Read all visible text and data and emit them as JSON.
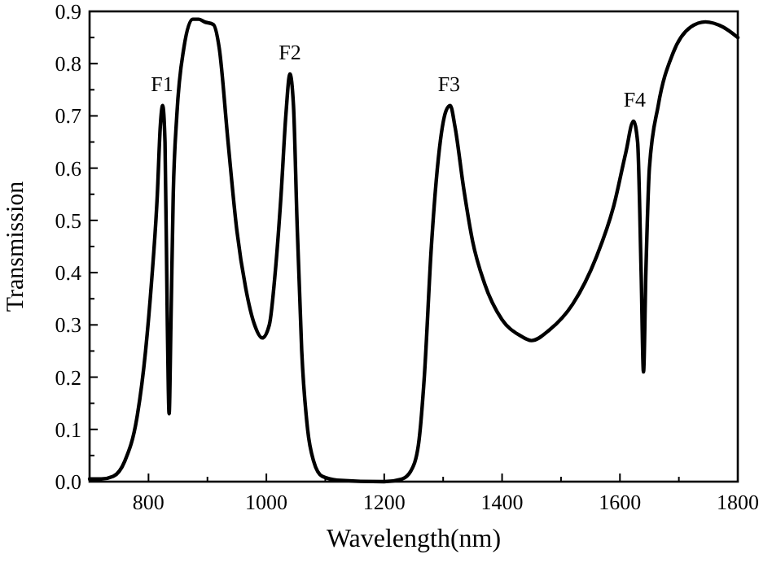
{
  "chart_data": {
    "type": "line",
    "xlabel": "Wavelength(nm)",
    "ylabel": "Transmission",
    "xlim": [
      700,
      1800
    ],
    "ylim": [
      0,
      0.9
    ],
    "xticks": [
      800,
      {
        "value": 900,
        "label": null
      },
      1000,
      {
        "value": 1100,
        "label": null
      },
      1200,
      {
        "value": 1300,
        "label": null
      },
      1400,
      {
        "value": 1500,
        "label": null
      },
      1600,
      {
        "value": 1700,
        "label": null
      },
      1800
    ],
    "yticks": [
      {
        "value": 0,
        "label": "0.0"
      },
      {
        "value": 0.05,
        "label": null
      },
      0.1,
      {
        "value": 0.15,
        "label": null
      },
      0.2,
      {
        "value": 0.25,
        "label": null
      },
      0.3,
      {
        "value": 0.35,
        "label": null
      },
      0.4,
      {
        "value": 0.45,
        "label": null
      },
      0.5,
      {
        "value": 0.55,
        "label": null
      },
      0.6,
      {
        "value": 0.65,
        "label": null
      },
      0.7,
      {
        "value": 0.75,
        "label": null
      },
      0.8,
      {
        "value": 0.85,
        "label": null
      },
      0.9
    ],
    "grid": false,
    "marker": "none",
    "line_style": "solid",
    "annotations": [
      {
        "text": "F1",
        "x": 823,
        "y": 0.72
      },
      {
        "text": "F2",
        "x": 1040,
        "y": 0.78
      },
      {
        "text": "F3",
        "x": 1310,
        "y": 0.72
      },
      {
        "text": "F4",
        "x": 1625,
        "y": 0.69
      }
    ],
    "series": [
      {
        "color": "#000000",
        "x": [
          700,
          720,
          740,
          760,
          780,
          795,
          805,
          815,
          820,
          824,
          828,
          832,
          835,
          838,
          842,
          848,
          860,
          875,
          885,
          895,
          910,
          920,
          935,
          950,
          965,
          980,
          993,
          1005,
          1015,
          1025,
          1033,
          1040,
          1046,
          1052,
          1060,
          1070,
          1080,
          1095,
          1120,
          1200,
          1230,
          1245,
          1258,
          1268,
          1280,
          1292,
          1305,
          1312,
          1320,
          1335,
          1350,
          1370,
          1400,
          1430,
          1450,
          1480,
          1520,
          1560,
          1590,
          1610,
          1623,
          1630,
          1636,
          1640,
          1644,
          1650,
          1665,
          1690,
          1720,
          1745,
          1775,
          1800
        ],
        "values": [
          0.005,
          0.005,
          0.01,
          0.04,
          0.12,
          0.25,
          0.38,
          0.55,
          0.68,
          0.72,
          0.65,
          0.3,
          0.13,
          0.3,
          0.55,
          0.7,
          0.83,
          0.885,
          0.885,
          0.88,
          0.875,
          0.83,
          0.65,
          0.48,
          0.37,
          0.3,
          0.275,
          0.3,
          0.4,
          0.55,
          0.7,
          0.78,
          0.72,
          0.5,
          0.25,
          0.1,
          0.04,
          0.01,
          0.003,
          0,
          0.005,
          0.02,
          0.07,
          0.2,
          0.45,
          0.62,
          0.71,
          0.72,
          0.68,
          0.56,
          0.46,
          0.38,
          0.31,
          0.28,
          0.27,
          0.29,
          0.34,
          0.43,
          0.53,
          0.63,
          0.69,
          0.65,
          0.4,
          0.21,
          0.4,
          0.6,
          0.72,
          0.82,
          0.87,
          0.88,
          0.87,
          0.85
        ]
      }
    ]
  }
}
